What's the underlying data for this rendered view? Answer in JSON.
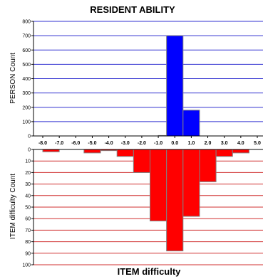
{
  "chart_data": {
    "type": "bar",
    "title": "RESIDENT ABILITY",
    "xlabel": "ITEM difficulty",
    "x_ticks": [
      "-8.0",
      "-7.0",
      "-6.0",
      "-5.0",
      "-4.0",
      "-3.0",
      "-2.0",
      "-1.0",
      "0.0",
      "1.0",
      "2.0",
      "3.0",
      "4.0",
      "5.0"
    ],
    "xlim": [
      -8,
      5
    ],
    "top_panel": {
      "ylabel": "PERSON Count",
      "ylim": [
        0,
        800
      ],
      "y_ticks": [
        "0",
        "100",
        "200",
        "300",
        "400",
        "500",
        "600",
        "700",
        "800"
      ],
      "color": "#0000ff",
      "bars": [
        {
          "x0": -1.0,
          "x1": -0.5,
          "value": 3
        },
        {
          "x0": -0.5,
          "x1": 0.5,
          "value": 700
        },
        {
          "x0": 0.5,
          "x1": 1.5,
          "value": 180
        }
      ]
    },
    "bottom_panel": {
      "ylabel": "ITEM difficulty Count",
      "ylim": [
        0,
        100
      ],
      "y_ticks": [
        "0",
        "10",
        "20",
        "30",
        "40",
        "50",
        "60",
        "70",
        "80",
        "90",
        "100"
      ],
      "color": "#ff0000",
      "bars": [
        {
          "x0": -8.0,
          "x1": -7.0,
          "value": 2
        },
        {
          "x0": -5.5,
          "x1": -4.5,
          "value": 3
        },
        {
          "x0": -4.5,
          "x1": -3.5,
          "value": 1
        },
        {
          "x0": -3.5,
          "x1": -2.5,
          "value": 6
        },
        {
          "x0": -2.5,
          "x1": -1.5,
          "value": 20
        },
        {
          "x0": -1.5,
          "x1": -0.5,
          "value": 62
        },
        {
          "x0": -0.5,
          "x1": 0.5,
          "value": 88
        },
        {
          "x0": 0.5,
          "x1": 1.5,
          "value": 58
        },
        {
          "x0": 1.5,
          "x1": 2.5,
          "value": 28
        },
        {
          "x0": 2.5,
          "x1": 3.5,
          "value": 6
        },
        {
          "x0": 3.5,
          "x1": 4.5,
          "value": 3
        }
      ]
    }
  }
}
